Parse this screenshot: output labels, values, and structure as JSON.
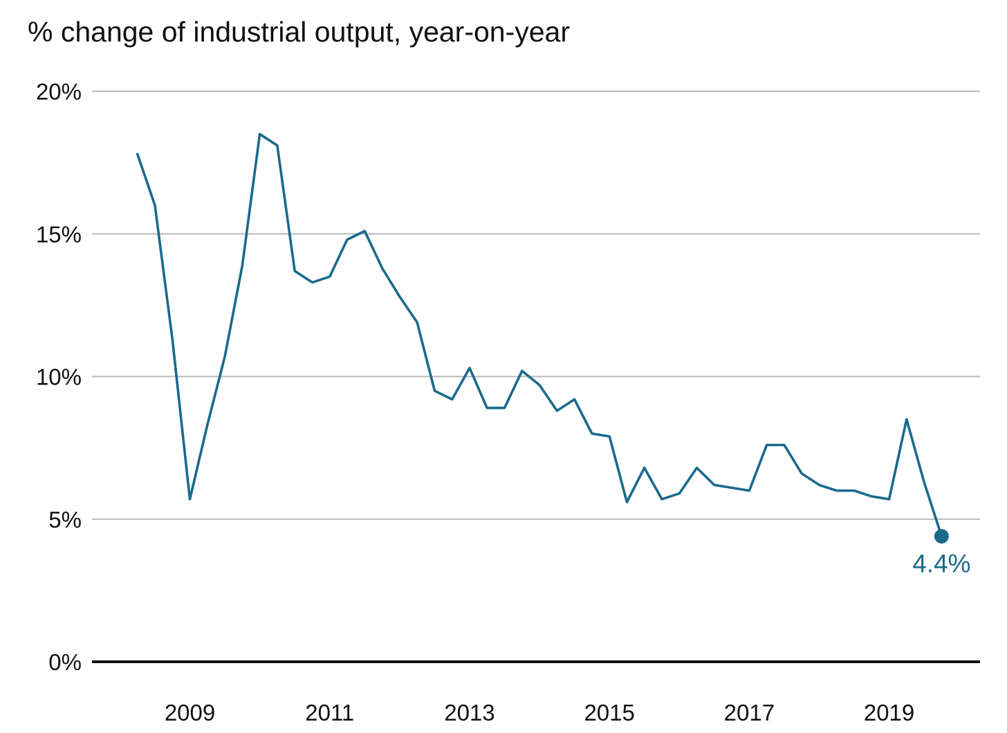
{
  "chart_data": {
    "type": "line",
    "title": "% change of industrial output, year-on-year",
    "xlabel": "",
    "ylabel": "",
    "xlim": [
      2007.6,
      2020.3
    ],
    "ylim": [
      0,
      20
    ],
    "y_ticks": [
      {
        "value": 0,
        "label": "0%"
      },
      {
        "value": 5,
        "label": "5%"
      },
      {
        "value": 10,
        "label": "10%"
      },
      {
        "value": 15,
        "label": "15%"
      },
      {
        "value": 20,
        "label": "20%"
      }
    ],
    "x_ticks": [
      {
        "value": 2009,
        "label": "2009"
      },
      {
        "value": 2011,
        "label": "2011"
      },
      {
        "value": 2013,
        "label": "2013"
      },
      {
        "value": 2015,
        "label": "2015"
      },
      {
        "value": 2017,
        "label": "2017"
      },
      {
        "value": 2019,
        "label": "2019"
      }
    ],
    "grid": true,
    "legend": "none",
    "series": [
      {
        "color": "#1a6a8c",
        "x": [
          2008.25,
          2008.5,
          2008.75,
          2009.0,
          2009.25,
          2009.5,
          2009.75,
          2010.0,
          2010.25,
          2010.5,
          2010.75,
          2011.0,
          2011.25,
          2011.5,
          2011.75,
          2012.0,
          2012.25,
          2012.5,
          2012.75,
          2013.0,
          2013.25,
          2013.5,
          2013.75,
          2014.0,
          2014.25,
          2014.5,
          2014.75,
          2015.0,
          2015.25,
          2015.5,
          2015.75,
          2016.0,
          2016.25,
          2016.5,
          2016.75,
          2017.0,
          2017.25,
          2017.5,
          2017.75,
          2018.0,
          2018.25,
          2018.5,
          2018.75,
          2019.0,
          2019.25,
          2019.5,
          2019.75
        ],
        "values": [
          17.8,
          16.0,
          11.3,
          5.7,
          8.3,
          10.7,
          13.9,
          18.5,
          18.1,
          13.7,
          13.3,
          13.5,
          14.8,
          15.1,
          13.8,
          12.8,
          11.9,
          9.5,
          9.2,
          10.3,
          8.9,
          8.9,
          10.2,
          9.7,
          8.8,
          9.2,
          8.0,
          7.9,
          5.6,
          6.8,
          5.7,
          5.9,
          6.8,
          6.2,
          6.1,
          6.0,
          7.6,
          7.6,
          6.6,
          6.2,
          6.0,
          6.0,
          5.8,
          5.7,
          8.5,
          6.3,
          4.4
        ],
        "end_label": "4.4%"
      }
    ]
  }
}
